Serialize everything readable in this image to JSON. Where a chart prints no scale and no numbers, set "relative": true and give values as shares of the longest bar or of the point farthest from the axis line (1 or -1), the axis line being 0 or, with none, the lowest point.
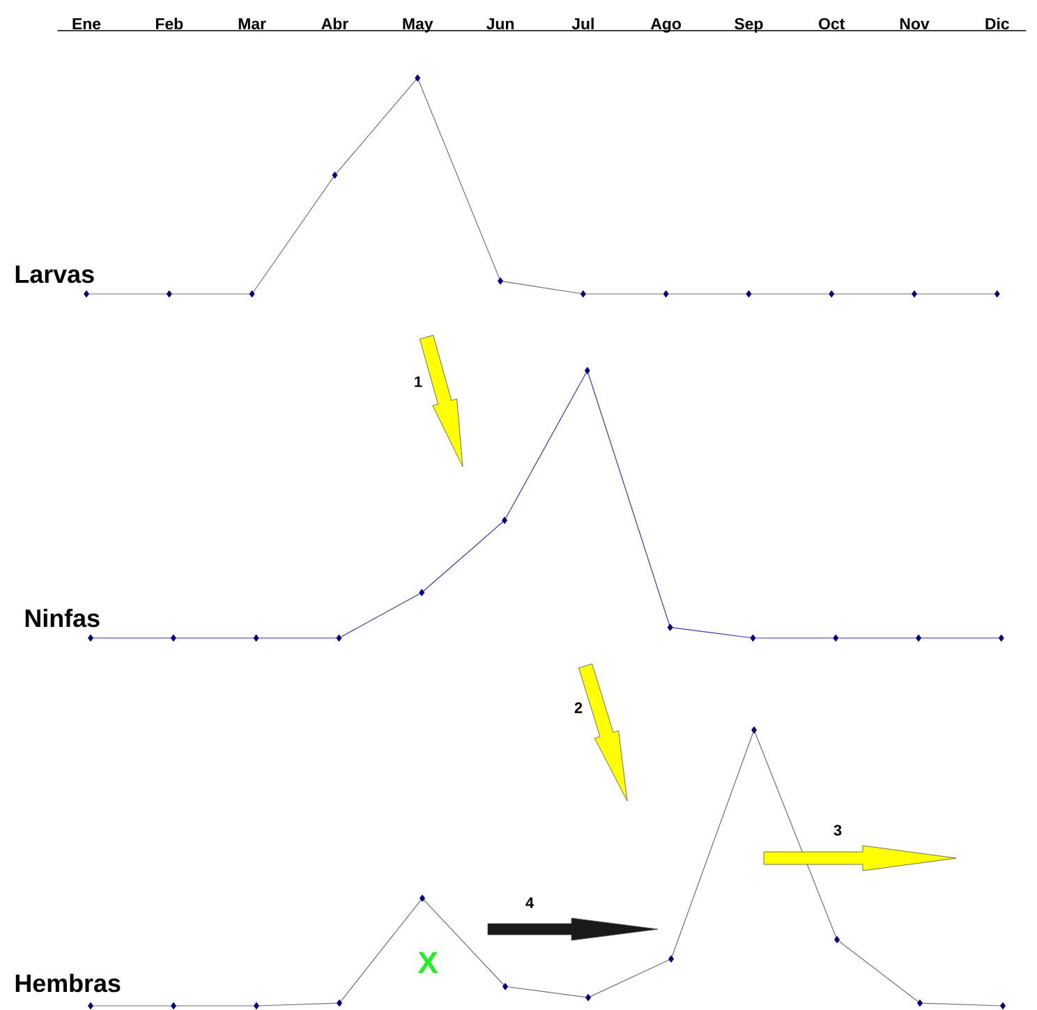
{
  "chart_data": [
    {
      "type": "line",
      "relative": true,
      "ylabel": "Larvas",
      "categories": [
        "Ene",
        "Feb",
        "Mar",
        "Abr",
        "May",
        "Jun",
        "Jul",
        "Ago",
        "Sep",
        "Oct",
        "Nov",
        "Dic"
      ],
      "marker": "diamond",
      "line_style": "solid",
      "tick_labels": "x",
      "series": [
        {
          "color": "#707070",
          "values": [
            0,
            0,
            0,
            0.55,
            1,
            0.06,
            0,
            0,
            0,
            0,
            0,
            0
          ]
        }
      ]
    },
    {
      "type": "line",
      "relative": true,
      "ylabel": "Ninfas",
      "categories": [
        null,
        null,
        null,
        null,
        null,
        null,
        null,
        null,
        null,
        null,
        null,
        null
      ],
      "marker": "diamond",
      "line_style": "solid",
      "tick_labels": false,
      "annotations": [
        "1"
      ],
      "series": [
        {
          "color": "#3838a8",
          "values": [
            0,
            0,
            0,
            0,
            0.17,
            0.44,
            1,
            0.04,
            0,
            0,
            0,
            0
          ]
        }
      ]
    },
    {
      "type": "line",
      "relative": true,
      "ylabel": "Hembras",
      "categories": [
        null,
        null,
        null,
        null,
        null,
        null,
        null,
        null,
        null,
        null,
        null,
        null
      ],
      "marker": "diamond",
      "line_style": "solid",
      "tick_labels": false,
      "annotations": [
        "2",
        "3",
        "4",
        "X"
      ],
      "series": [
        {
          "color": "#707070",
          "values": [
            0,
            0,
            0,
            0.01,
            0.39,
            0.07,
            0.03,
            0.17,
            1,
            0.24,
            0.01,
            0
          ]
        }
      ]
    }
  ]
}
